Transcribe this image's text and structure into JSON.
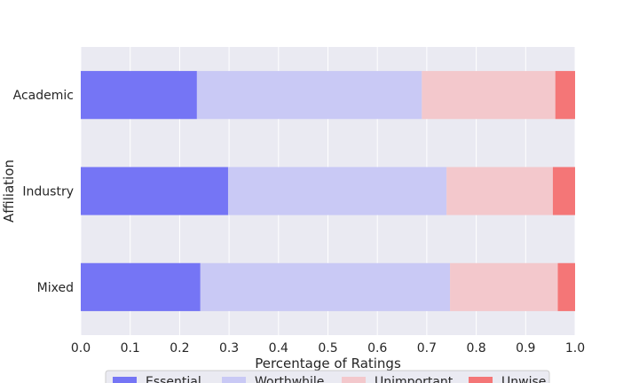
{
  "chart_data": {
    "type": "bar",
    "orientation": "horizontal",
    "stacked": true,
    "categories": [
      "Academic",
      "Industry",
      "Mixed"
    ],
    "series": [
      {
        "name": "Essential",
        "color": "#7575f5",
        "values": [
          0.235,
          0.298,
          0.242
        ]
      },
      {
        "name": "Worthwhile",
        "color": "#c9c9f5",
        "values": [
          0.455,
          0.442,
          0.505
        ]
      },
      {
        "name": "Unimportant",
        "color": "#f3c8cc",
        "values": [
          0.27,
          0.215,
          0.218
        ]
      },
      {
        "name": "Unwise",
        "color": "#f47677",
        "values": [
          0.04,
          0.045,
          0.035
        ]
      }
    ],
    "xlabel": "Percentage of Ratings",
    "ylabel": "Affiliation",
    "xlim": [
      0,
      1
    ],
    "xticks": [
      "0.0",
      "0.1",
      "0.2",
      "0.3",
      "0.4",
      "0.5",
      "0.6",
      "0.7",
      "0.8",
      "0.9",
      "1.0"
    ],
    "grid": true,
    "legend_position": "bottom-center"
  },
  "colors": {
    "plot_background": "#eaeaf2",
    "grid": "#ffffff"
  }
}
